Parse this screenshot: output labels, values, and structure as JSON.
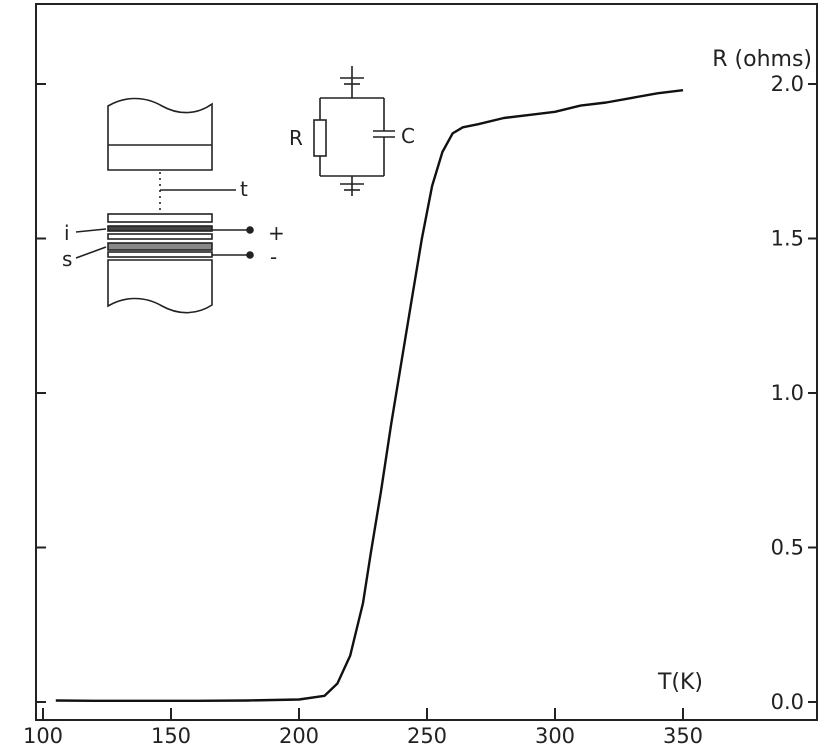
{
  "chart_data": {
    "type": "line",
    "title": "",
    "xlabel": "T(K)",
    "ylabel": "R (ohms)",
    "xlim": [
      100,
      370
    ],
    "ylim": [
      0,
      2.15
    ],
    "x_ticks": [
      100,
      150,
      200,
      250,
      300,
      350
    ],
    "x_tick_labels": [
      "100",
      "150",
      "200",
      "250",
      "300",
      "350"
    ],
    "y_ticks": [
      0,
      0.5,
      1.0,
      1.5,
      2.0
    ],
    "y_tick_labels": [
      "0.0",
      "0.5",
      "1.0",
      "1.5",
      "2.0"
    ],
    "grid": false,
    "series": [
      {
        "x": [
          105,
          120,
          140,
          160,
          180,
          200,
          210,
          215,
          220,
          225,
          228,
          232,
          236,
          240,
          244,
          248,
          252,
          256,
          260,
          264,
          270,
          280,
          290,
          300,
          310,
          320,
          330,
          340,
          350
        ],
        "y": [
          0.005,
          0.004,
          0.004,
          0.004,
          0.005,
          0.008,
          0.02,
          0.06,
          0.15,
          0.32,
          0.48,
          0.68,
          0.9,
          1.1,
          1.3,
          1.5,
          1.67,
          1.78,
          1.84,
          1.86,
          1.87,
          1.89,
          1.9,
          1.91,
          1.93,
          1.94,
          1.955,
          1.97,
          1.98
        ]
      }
    ],
    "inset": {
      "sample_labels": [
        "t",
        "i",
        "s",
        "+",
        "-"
      ],
      "circuit_labels": [
        "R",
        "C"
      ]
    }
  }
}
